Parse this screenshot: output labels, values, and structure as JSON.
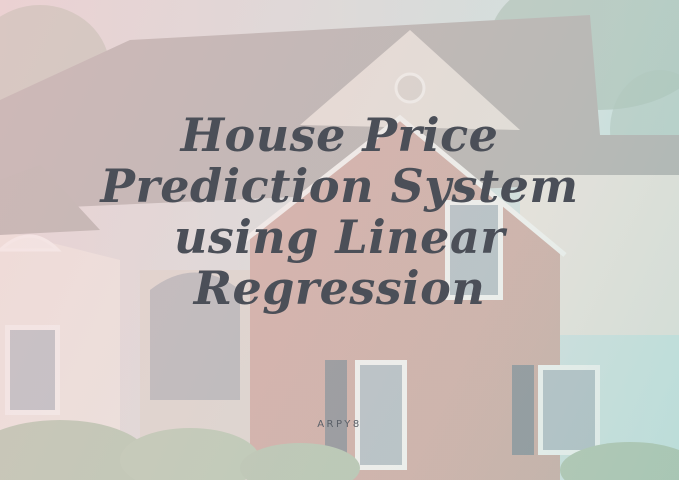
{
  "title": "House Price Prediction System using Linear Regression",
  "author": "ARPY8",
  "colors": {
    "title_text": "#4b4f58",
    "overlay_pink": "#f6d6d8",
    "overlay_teal": "#bee2de",
    "brick": "#b97d6f",
    "siding": "#e4d6cb",
    "roof": "#8f8682"
  }
}
